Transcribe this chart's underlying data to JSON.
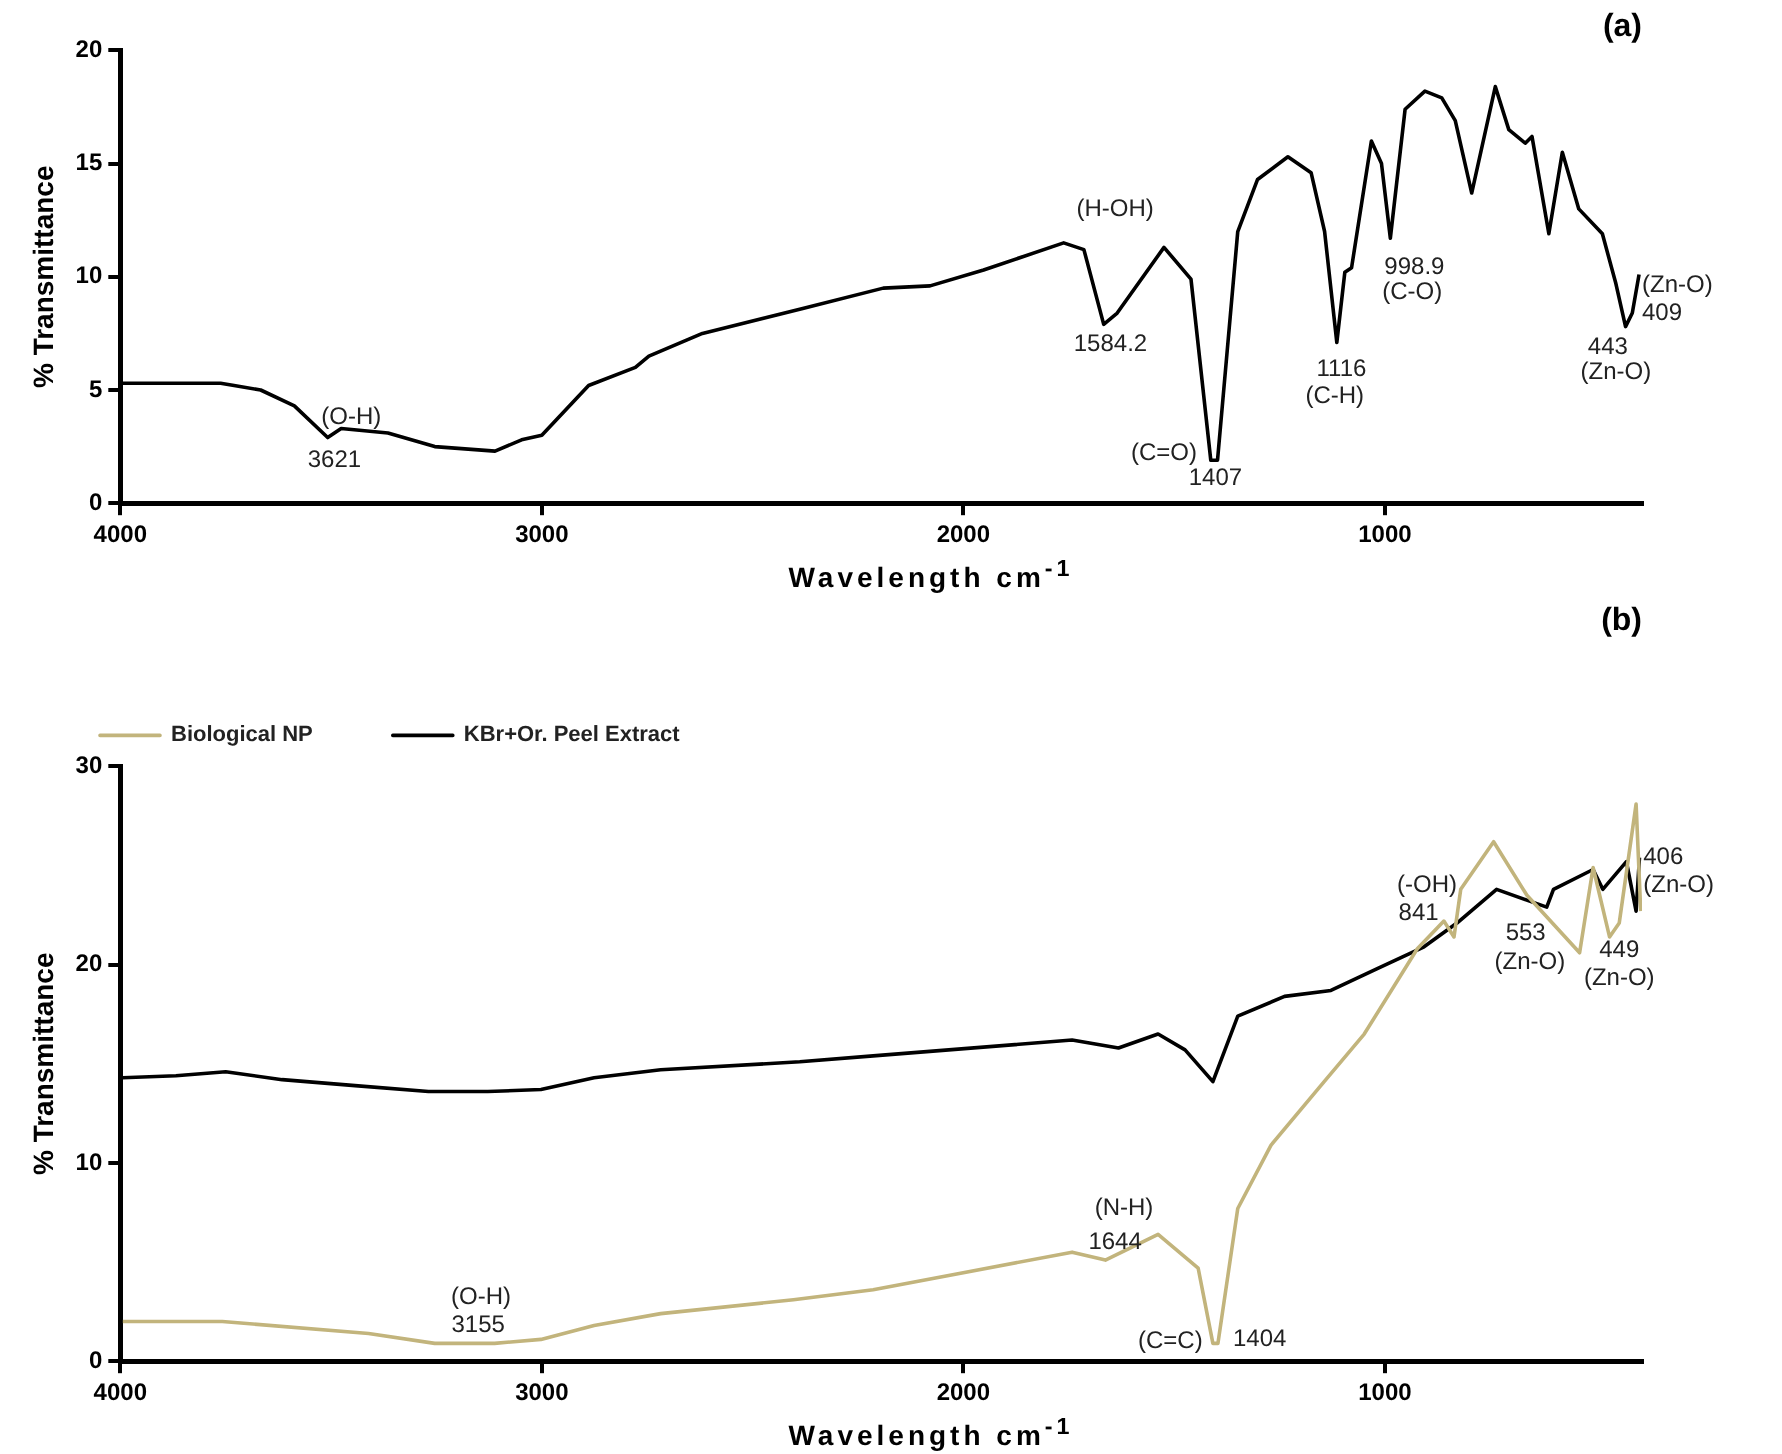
{
  "chart_data": [
    {
      "type": "line",
      "title": "(a)",
      "xlabel": "Wavelength cm$^{-1}$",
      "ylabel": "% Transmittance",
      "xlim": [
        4000,
        390
      ],
      "xticks": [
        4000,
        3000,
        2000,
        1000
      ],
      "ylim": [
        0,
        20
      ],
      "yticks": [
        0,
        5,
        10,
        15,
        20
      ],
      "grid": false,
      "legend": false,
      "marker": "none",
      "line_style": "solid",
      "series": [
        {
          "color": "#000000",
          "x": [
            4000,
            3762,
            3730,
            3667,
            3587,
            3508,
            3476,
            3365,
            3254,
            3111,
            3048,
            3000,
            2889,
            2778,
            2746,
            2619,
            2381,
            2190,
            2079,
            1952,
            1762,
            1714,
            1667,
            1635,
            1524,
            1460,
            1413,
            1397,
            1349,
            1302,
            1230,
            1175,
            1143,
            1114,
            1095,
            1079,
            1032,
            1008,
            987,
            952,
            905,
            865,
            833,
            794,
            738,
            706,
            667,
            651,
            611,
            579,
            540,
            484,
            452,
            429,
            413,
            397
          ],
          "values": [
            5.3,
            5.3,
            5.2,
            5.0,
            4.3,
            2.9,
            3.3,
            3.1,
            2.5,
            2.3,
            2.8,
            3.0,
            5.2,
            6.0,
            6.5,
            7.5,
            8.6,
            9.5,
            9.6,
            10.3,
            11.5,
            11.2,
            7.9,
            8.4,
            11.3,
            9.9,
            1.9,
            1.9,
            12.0,
            14.3,
            15.3,
            14.6,
            12.0,
            7.1,
            10.2,
            10.4,
            16.0,
            15.0,
            11.7,
            17.4,
            18.2,
            17.9,
            16.9,
            13.7,
            18.4,
            16.5,
            15.9,
            16.2,
            11.9,
            15.5,
            13.0,
            11.9,
            9.7,
            7.8,
            8.4,
            10.1
          ]
        }
      ],
      "annotations": [
        "(O-H)",
        "3621",
        "(H-OH)",
        "1584.2",
        "(C=O)",
        "1407",
        "1116",
        "(C-H)",
        "998.9",
        "(C-O)",
        "443",
        "(Zn-O)",
        "(Zn-O)",
        "409"
      ]
    },
    {
      "type": "line",
      "title": "(b)",
      "xlabel": "Wavelength cm$^{-1}$",
      "ylabel": "% Transmittance",
      "xlim": [
        4000,
        390
      ],
      "xticks": [
        4000,
        3000,
        2000,
        1000
      ],
      "ylim": [
        0,
        30
      ],
      "yticks": [
        0,
        10,
        20,
        30
      ],
      "grid": false,
      "legend": "top left",
      "marker": "none",
      "line_style": "solid",
      "series": [
        {
          "name": "Biological NP",
          "color": "#c2b47c",
          "x": [
            3994,
            3758,
            3411,
            3254,
            3112,
            3002,
            2876,
            2718,
            2403,
            2214,
            1742,
            1663,
            1538,
            1443,
            1408,
            1396,
            1349,
            1270,
            1144,
            1049,
            923,
            860,
            836,
            820,
            742,
            663,
            538,
            506,
            467,
            444,
            404,
            393
          ],
          "values": [
            2.0,
            2.0,
            1.4,
            0.9,
            0.9,
            1.1,
            1.8,
            2.4,
            3.1,
            3.6,
            5.5,
            5.1,
            6.4,
            4.7,
            0.9,
            0.9,
            7.7,
            10.9,
            14.1,
            16.5,
            20.8,
            22.2,
            21.4,
            23.8,
            26.2,
            23.5,
            20.6,
            24.9,
            21.4,
            22.1,
            28.1,
            22.7
          ]
        },
        {
          "name": "KBr+Or. Peel Extract",
          "color": "#000000",
          "x": [
            3994,
            3868,
            3750,
            3616,
            3443,
            3269,
            3128,
            3002,
            2876,
            2718,
            2388,
            2214,
            1742,
            1632,
            1538,
            1474,
            1408,
            1349,
            1238,
            1128,
            1018,
            907,
            829,
            735,
            616,
            600,
            506,
            483,
            427,
            404,
            396
          ],
          "values": [
            14.3,
            14.4,
            14.6,
            14.2,
            13.9,
            13.6,
            13.6,
            13.7,
            14.3,
            14.7,
            15.1,
            15.4,
            16.2,
            15.8,
            16.5,
            15.7,
            14.1,
            17.4,
            18.4,
            18.7,
            19.8,
            20.9,
            22.1,
            23.8,
            22.9,
            23.8,
            24.8,
            23.8,
            25.2,
            22.7,
            25.4
          ]
        }
      ],
      "annotations": [
        "(O-H)",
        "3155",
        "(N-H)",
        "1644",
        "(C=C)",
        "1404",
        "(-OH)",
        "841",
        "553",
        "(Zn-O)",
        "449",
        "(Zn-O)",
        "406",
        "(Zn-O)"
      ]
    }
  ]
}
